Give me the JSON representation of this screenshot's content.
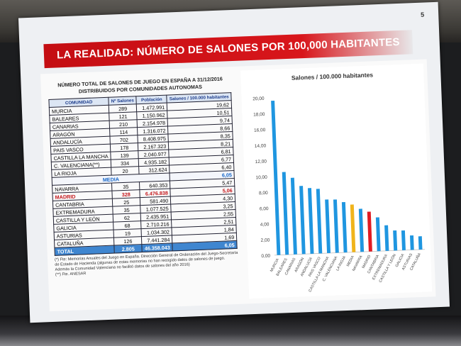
{
  "slide": {
    "page_number": "5",
    "title": "LA REALIDAD: NÚMERO DE SALONES POR 100,000 HABITANTES",
    "colors": {
      "title_bar": "#d8161b",
      "bar": "#1f96e0",
      "media_bar": "#f0b41c",
      "madrid_bar": "#e01b22"
    }
  },
  "table": {
    "title_line1": "NÚMERO TOTAL DE SALONES DE JUEGO EN ESPAÑA A 31/12/2016",
    "title_line2": "DISTRIBUIDOS POR COMUNIDADES AUTONOMAS",
    "headers": [
      "COMUNIDAD",
      "Nº Salones",
      "Población",
      "Salones / 100.000 habitantes"
    ],
    "rows_top": [
      [
        "MURCIA",
        "289",
        "1.472.991",
        "19,62"
      ],
      [
        "BALEARES",
        "121",
        "1.150.962",
        "10,51"
      ],
      [
        "CANARIAS",
        "210",
        "2.154.978",
        "9,74"
      ],
      [
        "ARAGÓN",
        "114",
        "1.316.072",
        "8,66"
      ],
      [
        "ANDALUCÍA",
        "702",
        "8.408.975",
        "8,35"
      ],
      [
        "PAIS VASCO",
        "178",
        "2.167.323",
        "8,21"
      ],
      [
        "CASTILLA LA MANCHA",
        "139",
        "2.040.977",
        "6,81"
      ],
      [
        "C. VALENCIANA(**)",
        "334",
        "4.935.182",
        "6,77"
      ],
      [
        "LA RIOJA",
        "20",
        "312.624",
        "6,40"
      ]
    ],
    "media_row": [
      "MEDIA",
      "6,05"
    ],
    "rows_mid": [
      [
        "NAVARRA",
        "35",
        "640.353",
        "5,47"
      ]
    ],
    "madrid_row": [
      "MADRID",
      "328",
      "6.476.838",
      "5,06"
    ],
    "rows_bottom": [
      [
        "CANTABRIA",
        "25",
        "581.490",
        "4,30"
      ],
      [
        "EXTREMADURA",
        "35",
        "1.077.525",
        "3,25"
      ],
      [
        "CASTILLA Y LEÓN",
        "62",
        "2.435.951",
        "2,55"
      ],
      [
        "GALICIA",
        "68",
        "2.710.216",
        "2,51"
      ],
      [
        "ASTURIAS",
        "19",
        "1.034.302",
        "1,84"
      ],
      [
        "CATALUÑA",
        "126",
        "7.441.284",
        "1,69"
      ]
    ],
    "total_row": [
      "TOTAL",
      "2.805",
      "46.358.043",
      "6,05"
    ],
    "note1": "(*) Fte: Memorias Anuales del Juego en España. Dirección General de Ordenación del Juego-Secretaría de Estado de Hacienda (algunas de estas memorias no han recogido datos de salones de juego. Además la Comunidad Valenciana no facilitó datos de salones del año 2016)",
    "note2": "(**) Fte. ANESAR"
  },
  "chart_data": {
    "type": "bar",
    "title": "Salones / 100.000 habitantes",
    "categories": [
      "MURCIA",
      "BALEARES",
      "CANARIAS",
      "ARAGÓN",
      "ANDALUCÍA",
      "PAIS VASCO",
      "CASTILLA LA MANCHA",
      "C. VALENCIANA",
      "LA RIOJA",
      "MEDIA",
      "NAVARRA",
      "MADRID",
      "CANTABRIA",
      "EXTREMADURA",
      "CASTILLA Y LEÓN",
      "GALICIA",
      "ASTURIAS",
      "CATALUÑA"
    ],
    "values": [
      19.62,
      10.51,
      9.74,
      8.66,
      8.35,
      8.21,
      6.81,
      6.77,
      6.4,
      6.05,
      5.47,
      5.06,
      4.3,
      3.25,
      2.55,
      2.51,
      1.84,
      1.69
    ],
    "highlights": {
      "MEDIA": "#f0b41c",
      "MADRID": "#e01b22"
    },
    "yticks": [
      "0,00",
      "2,00",
      "4,00",
      "6,00",
      "8,00",
      "10,00",
      "12,00",
      "14,00",
      "16,00",
      "18,00",
      "20,00"
    ],
    "ylim": [
      0,
      20
    ],
    "grid": false,
    "legend": "none"
  }
}
